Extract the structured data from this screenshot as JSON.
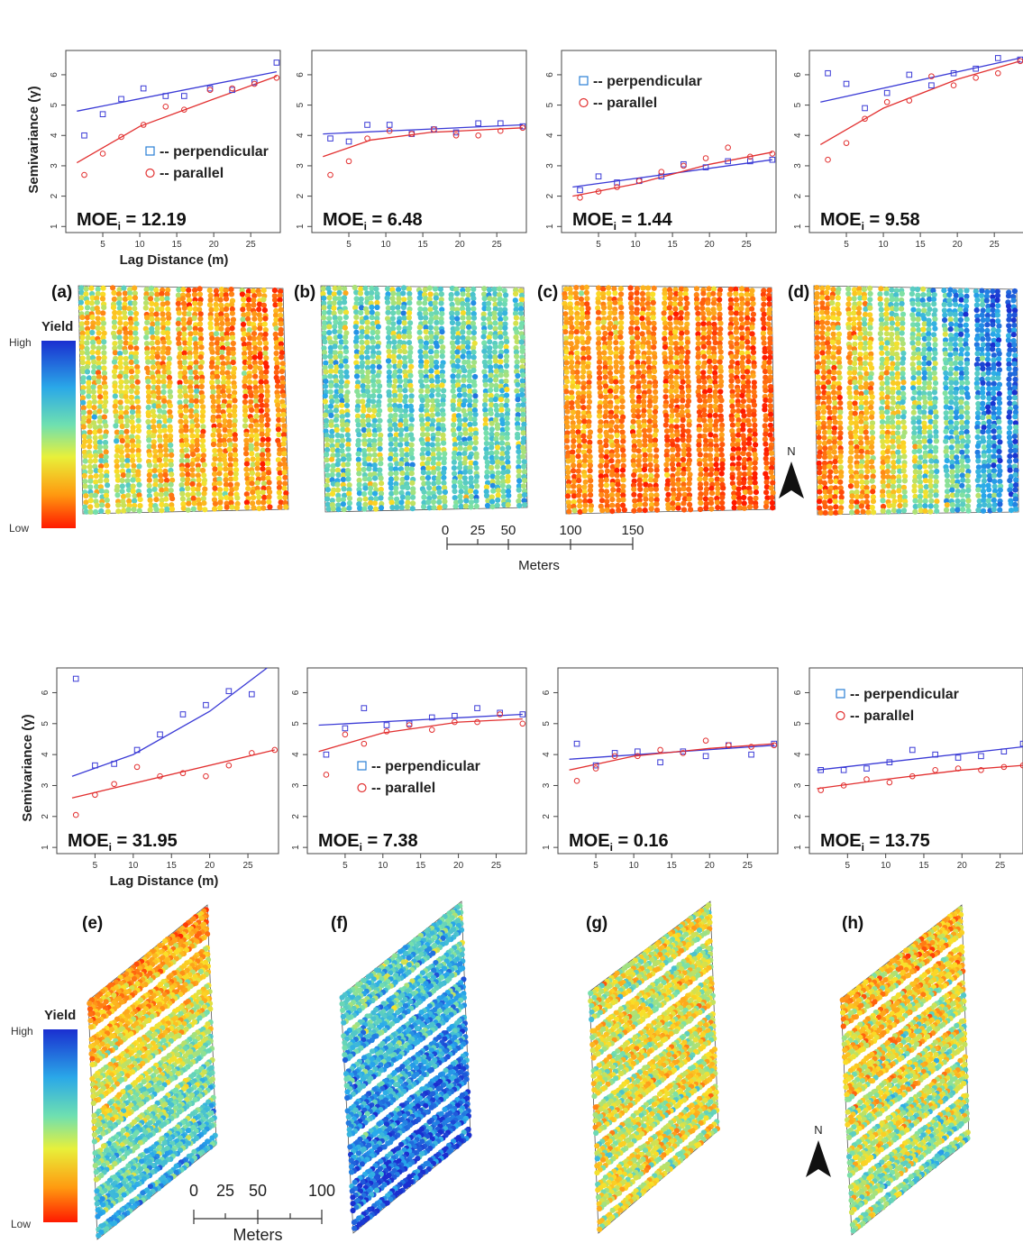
{
  "colors": {
    "perpendicular": "#3b3bd6",
    "parallel": "#e23030",
    "yield_high": "#1a2fd0",
    "yield_low": "#ff1a00"
  },
  "top_row": {
    "ylabel": "Semivariance (γ)",
    "xlabel": "Lag Distance (m)",
    "legend_labels": [
      "-- perpendicular",
      "-- parallel"
    ],
    "yield_legend": {
      "title": "Yield",
      "high": "High",
      "low": "Low"
    },
    "scalebar": {
      "ticks": [
        "0",
        "25",
        "50",
        "100",
        "150"
      ],
      "unit": "Meters"
    },
    "north": "N",
    "panel_labels": [
      "(a)",
      "(b)",
      "(c)",
      "(d)"
    ],
    "moe_values": [
      "12.19",
      "6.48",
      "1.44",
      "9.58"
    ]
  },
  "bottom_row": {
    "ylabel": "Semivariance (γ)",
    "xlabel": "Lag Distance (m)",
    "legend_labels": [
      "-- perpendicular",
      "-- parallel"
    ],
    "yield_legend": {
      "title": "Yield",
      "high": "High",
      "low": "Low"
    },
    "scalebar": {
      "ticks": [
        "0",
        "25",
        "50",
        "100"
      ],
      "unit": "Meters"
    },
    "north": "N",
    "panel_labels": [
      "(e)",
      "(f)",
      "(g)",
      "(h)"
    ],
    "moe_values": [
      "31.95",
      "7.38",
      "0.16",
      "13.75"
    ]
  },
  "chart_data": [
    {
      "type": "scatter",
      "panel": "a",
      "moe": "12.19",
      "xlim": [
        0,
        29
      ],
      "ylim": [
        0.8,
        6.8
      ],
      "xticks": [
        5,
        10,
        15,
        20,
        25
      ],
      "yticks": [
        1,
        2,
        3,
        4,
        5,
        6
      ],
      "series": [
        {
          "name": "perpendicular",
          "x": [
            2.5,
            5,
            7.5,
            10.5,
            13.5,
            16,
            19.5,
            22.5,
            25.5,
            28.5
          ],
          "y": [
            4.0,
            4.7,
            5.2,
            5.55,
            5.3,
            5.3,
            5.55,
            5.5,
            5.75,
            6.4
          ]
        },
        {
          "name": "parallel",
          "x": [
            2.5,
            5,
            7.5,
            10.5,
            13.5,
            16,
            19.5,
            22.5,
            25.5,
            28.5
          ],
          "y": [
            2.7,
            3.4,
            3.95,
            4.35,
            4.95,
            4.85,
            5.5,
            5.55,
            5.7,
            5.9
          ]
        }
      ],
      "fits": {
        "perpendicular": [
          [
            1.5,
            4.8
          ],
          [
            28.5,
            6.1
          ]
        ],
        "parallel": [
          [
            1.5,
            3.1
          ],
          [
            10,
            4.3
          ],
          [
            20,
            5.2
          ],
          [
            28.5,
            5.95
          ]
        ]
      }
    },
    {
      "type": "scatter",
      "panel": "b",
      "moe": "6.48",
      "xlim": [
        0,
        29
      ],
      "ylim": [
        0.8,
        6.8
      ],
      "xticks": [
        5,
        10,
        15,
        20,
        25
      ],
      "yticks": [
        1,
        2,
        3,
        4,
        5,
        6
      ],
      "series": [
        {
          "name": "perpendicular",
          "x": [
            2.5,
            5,
            7.5,
            10.5,
            13.5,
            16.5,
            19.5,
            22.5,
            25.5,
            28.5
          ],
          "y": [
            3.9,
            3.8,
            4.35,
            4.35,
            4.05,
            4.2,
            4.1,
            4.4,
            4.4,
            4.3
          ]
        },
        {
          "name": "parallel",
          "x": [
            2.5,
            5,
            7.5,
            10.5,
            13.5,
            16.5,
            19.5,
            22.5,
            25.5,
            28.5
          ],
          "y": [
            2.7,
            3.15,
            3.9,
            4.15,
            4.05,
            4.2,
            4.0,
            4.0,
            4.15,
            4.25
          ]
        }
      ],
      "fits": {
        "perpendicular": [
          [
            1.5,
            4.05
          ],
          [
            28.5,
            4.35
          ]
        ],
        "parallel": [
          [
            1.5,
            3.3
          ],
          [
            8,
            3.85
          ],
          [
            16,
            4.1
          ],
          [
            28.5,
            4.25
          ]
        ]
      }
    },
    {
      "type": "scatter",
      "panel": "c",
      "moe": "1.44",
      "xlim": [
        0,
        29
      ],
      "ylim": [
        0.8,
        6.8
      ],
      "xticks": [
        5,
        10,
        15,
        20,
        25
      ],
      "yticks": [
        1,
        2,
        3,
        4,
        5,
        6
      ],
      "series": [
        {
          "name": "perpendicular",
          "x": [
            2.5,
            5,
            7.5,
            10.5,
            13.5,
            16.5,
            19.5,
            22.5,
            25.5,
            28.5
          ],
          "y": [
            2.2,
            2.65,
            2.45,
            2.5,
            2.65,
            3.05,
            2.95,
            3.15,
            3.15,
            3.2
          ]
        },
        {
          "name": "parallel",
          "x": [
            2.5,
            5,
            7.5,
            10.5,
            13.5,
            16.5,
            19.5,
            22.5,
            25.5,
            28.5
          ],
          "y": [
            1.95,
            2.15,
            2.3,
            2.5,
            2.8,
            3.0,
            3.25,
            3.6,
            3.3,
            3.4
          ]
        }
      ],
      "fits": {
        "perpendicular": [
          [
            1.5,
            2.3
          ],
          [
            28.5,
            3.2
          ]
        ],
        "parallel": [
          [
            1.5,
            2.0
          ],
          [
            10,
            2.4
          ],
          [
            20,
            3.05
          ],
          [
            28.5,
            3.45
          ]
        ]
      }
    },
    {
      "type": "scatter",
      "panel": "d",
      "moe": "9.58",
      "xlim": [
        0,
        29
      ],
      "ylim": [
        0.8,
        6.8
      ],
      "xticks": [
        5,
        10,
        15,
        20,
        25
      ],
      "yticks": [
        1,
        2,
        3,
        4,
        5,
        6
      ],
      "series": [
        {
          "name": "perpendicular",
          "x": [
            2.5,
            5,
            7.5,
            10.5,
            13.5,
            16.5,
            19.5,
            22.5,
            25.5,
            28.5
          ],
          "y": [
            6.05,
            5.7,
            4.9,
            5.4,
            6.0,
            5.65,
            6.05,
            6.2,
            6.55,
            6.5
          ]
        },
        {
          "name": "parallel",
          "x": [
            2.5,
            5,
            7.5,
            10.5,
            13.5,
            16.5,
            19.5,
            22.5,
            25.5,
            28.5
          ],
          "y": [
            3.2,
            3.75,
            4.55,
            5.1,
            5.15,
            5.95,
            5.65,
            5.9,
            6.05,
            6.45
          ]
        }
      ],
      "fits": {
        "perpendicular": [
          [
            1.5,
            5.1
          ],
          [
            28.5,
            6.55
          ]
        ],
        "parallel": [
          [
            1.5,
            3.7
          ],
          [
            10,
            4.9
          ],
          [
            20,
            5.85
          ],
          [
            28.5,
            6.45
          ]
        ]
      }
    },
    {
      "type": "scatter",
      "panel": "e",
      "moe": "31.95",
      "xlim": [
        0,
        29
      ],
      "ylim": [
        0.8,
        6.8
      ],
      "xticks": [
        5,
        10,
        15,
        20,
        25
      ],
      "yticks": [
        1,
        2,
        3,
        4,
        5,
        6
      ],
      "series": [
        {
          "name": "perpendicular",
          "x": [
            2.5,
            5,
            7.5,
            10.5,
            13.5,
            16.5,
            19.5,
            22.5,
            25.5
          ],
          "y": [
            6.45,
            3.65,
            3.7,
            4.15,
            4.65,
            5.3,
            5.6,
            6.05,
            5.95
          ]
        },
        {
          "name": "parallel",
          "x": [
            2.5,
            5,
            7.5,
            10.5,
            13.5,
            16.5,
            19.5,
            22.5,
            25.5,
            28.5
          ],
          "y": [
            2.05,
            2.7,
            3.05,
            3.6,
            3.3,
            3.4,
            3.3,
            3.65,
            4.05,
            4.15
          ]
        }
      ],
      "fits": {
        "perpendicular": [
          [
            2,
            3.3
          ],
          [
            10,
            4.0
          ],
          [
            20,
            5.4
          ],
          [
            27.5,
            6.8
          ]
        ],
        "parallel": [
          [
            2,
            2.6
          ],
          [
            28.5,
            4.15
          ]
        ]
      }
    },
    {
      "type": "scatter",
      "panel": "f",
      "moe": "7.38",
      "xlim": [
        0,
        29
      ],
      "ylim": [
        0.8,
        6.8
      ],
      "xticks": [
        5,
        10,
        15,
        20,
        25
      ],
      "yticks": [
        1,
        2,
        3,
        4,
        5,
        6
      ],
      "series": [
        {
          "name": "perpendicular",
          "x": [
            2.5,
            5,
            7.5,
            10.5,
            13.5,
            16.5,
            19.5,
            22.5,
            25.5,
            28.5
          ],
          "y": [
            4.0,
            4.85,
            5.5,
            4.95,
            5.0,
            5.2,
            5.25,
            5.5,
            5.35,
            5.3
          ]
        },
        {
          "name": "parallel",
          "x": [
            2.5,
            5,
            7.5,
            10.5,
            13.5,
            16.5,
            19.5,
            22.5,
            25.5,
            28.5
          ],
          "y": [
            3.35,
            4.65,
            4.35,
            4.75,
            4.95,
            4.8,
            5.05,
            5.05,
            5.3,
            5.0
          ]
        }
      ],
      "fits": {
        "perpendicular": [
          [
            1.5,
            4.95
          ],
          [
            28.5,
            5.3
          ]
        ],
        "parallel": [
          [
            1.5,
            4.1
          ],
          [
            10,
            4.7
          ],
          [
            20,
            5.05
          ],
          [
            28.5,
            5.15
          ]
        ]
      }
    },
    {
      "type": "scatter",
      "panel": "g",
      "moe": "0.16",
      "xlim": [
        0,
        29
      ],
      "ylim": [
        0.8,
        6.8
      ],
      "xticks": [
        5,
        10,
        15,
        20,
        25
      ],
      "yticks": [
        1,
        2,
        3,
        4,
        5,
        6
      ],
      "series": [
        {
          "name": "perpendicular",
          "x": [
            2.5,
            5,
            7.5,
            10.5,
            13.5,
            16.5,
            19.5,
            22.5,
            25.5,
            28.5
          ],
          "y": [
            4.35,
            3.65,
            4.05,
            4.1,
            3.75,
            4.1,
            3.95,
            4.3,
            4.0,
            4.35
          ]
        },
        {
          "name": "parallel",
          "x": [
            2.5,
            5,
            7.5,
            10.5,
            13.5,
            16.5,
            19.5,
            22.5,
            25.5,
            28.5
          ],
          "y": [
            3.15,
            3.55,
            3.95,
            3.95,
            4.15,
            4.05,
            4.45,
            4.3,
            4.25,
            4.3
          ]
        }
      ],
      "fits": {
        "perpendicular": [
          [
            1.5,
            3.85
          ],
          [
            28.5,
            4.3
          ]
        ],
        "parallel": [
          [
            1.5,
            3.5
          ],
          [
            10,
            3.95
          ],
          [
            20,
            4.2
          ],
          [
            28.5,
            4.35
          ]
        ]
      }
    },
    {
      "type": "scatter",
      "panel": "h",
      "moe": "13.75",
      "xlim": [
        0,
        28
      ],
      "ylim": [
        0.8,
        6.8
      ],
      "xticks": [
        5,
        10,
        15,
        20,
        25
      ],
      "yticks": [
        1,
        2,
        3,
        4,
        5,
        6
      ],
      "series": [
        {
          "name": "perpendicular",
          "x": [
            1.5,
            4.5,
            7.5,
            10.5,
            13.5,
            16.5,
            19.5,
            22.5,
            25.5,
            28
          ],
          "y": [
            3.5,
            3.5,
            3.55,
            3.75,
            4.15,
            4.0,
            3.9,
            3.95,
            4.1,
            4.35
          ]
        },
        {
          "name": "parallel",
          "x": [
            1.5,
            4.5,
            7.5,
            10.5,
            13.5,
            16.5,
            19.5,
            22.5,
            25.5,
            28
          ],
          "y": [
            2.85,
            3.0,
            3.2,
            3.1,
            3.3,
            3.5,
            3.55,
            3.5,
            3.6,
            3.65
          ]
        }
      ],
      "fits": {
        "perpendicular": [
          [
            1,
            3.5
          ],
          [
            28,
            4.25
          ]
        ],
        "parallel": [
          [
            1,
            2.9
          ],
          [
            10,
            3.2
          ],
          [
            20,
            3.5
          ],
          [
            28,
            3.65
          ]
        ]
      }
    }
  ]
}
